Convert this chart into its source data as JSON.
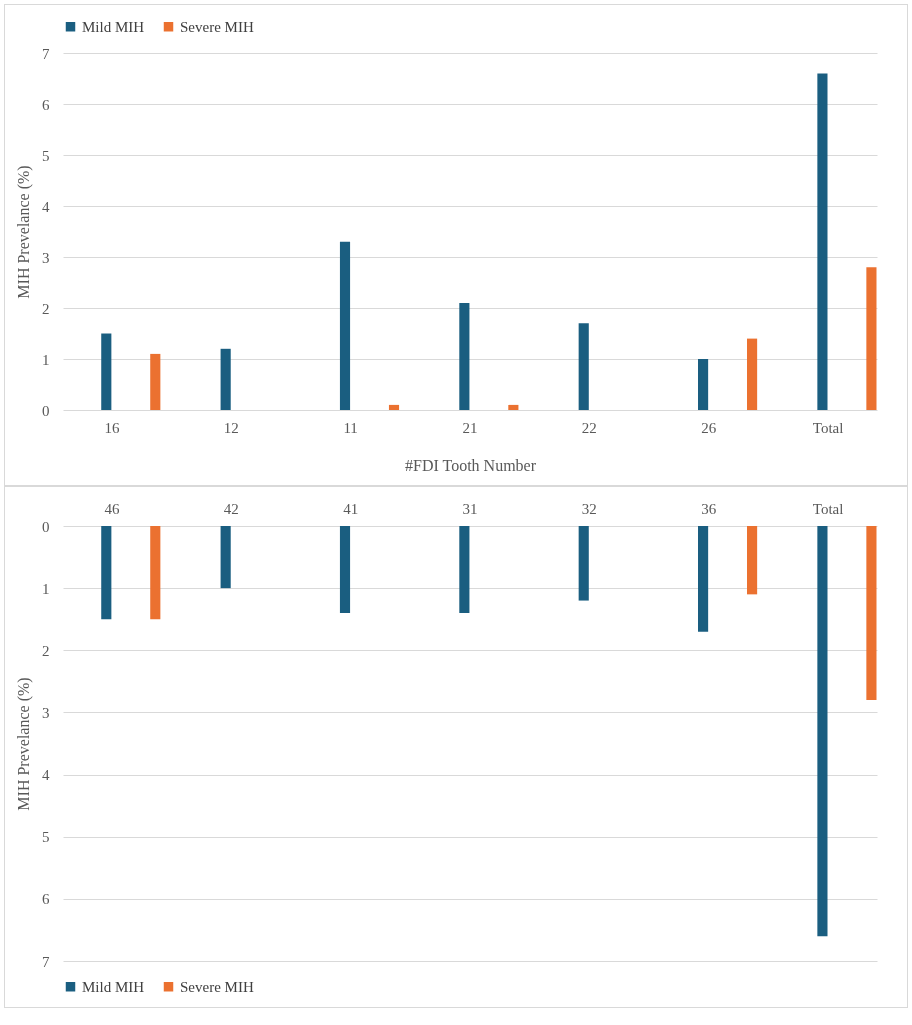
{
  "chart_data": [
    {
      "type": "bar",
      "categories": [
        "16",
        "12",
        "11",
        "21",
        "22",
        "26",
        "Total"
      ],
      "xlabel": "#FDI Tooth Number",
      "ylabel": "MIH Prevelance (%)",
      "ylim": [
        0,
        7
      ],
      "yticks": [
        0,
        1,
        2,
        3,
        4,
        5,
        6,
        7
      ],
      "grid": "y",
      "legend": "top",
      "series": [
        {
          "name": "Mild MIH",
          "color": "#1a5e80",
          "values": [
            1.5,
            1.2,
            3.3,
            2.1,
            1.7,
            1.0,
            6.6
          ]
        },
        {
          "name": "Severe MIH",
          "color": "#eb7130",
          "values": [
            1.1,
            0,
            0.1,
            0.1,
            0,
            1.4,
            2.8
          ]
        }
      ]
    },
    {
      "type": "bar",
      "categories": [
        "46",
        "42",
        "41",
        "31",
        "32",
        "36",
        "Total"
      ],
      "ylabel": "MIH Prevelance (%)",
      "ylim": [
        7,
        0
      ],
      "yticks": [
        0,
        1,
        2,
        3,
        4,
        5,
        6,
        7
      ],
      "grid": "y",
      "legend": "bottom",
      "series": [
        {
          "name": "Mild MIH",
          "color": "#1a5e80",
          "values": [
            1.5,
            1.0,
            1.4,
            1.4,
            1.2,
            1.7,
            6.6
          ]
        },
        {
          "name": "Severe MIH",
          "color": "#eb7130",
          "values": [
            1.5,
            0,
            0,
            0,
            0,
            1.1,
            2.8
          ]
        }
      ]
    }
  ]
}
